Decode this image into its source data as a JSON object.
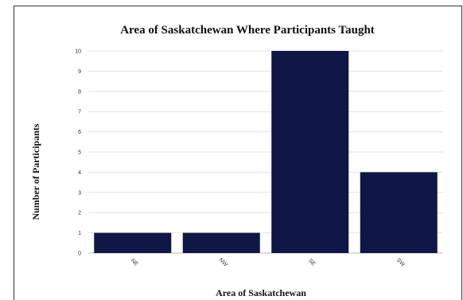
{
  "chart_data": {
    "type": "bar",
    "title": "Area of Saskatchewan Where Participants Taught",
    "xlabel": "Area of Saskatchewan",
    "ylabel": "Number of Participants",
    "categories": [
      "NE",
      "NW",
      "SE",
      "SW"
    ],
    "values": [
      1,
      1,
      10,
      4
    ],
    "ylim": [
      0,
      10
    ],
    "yticks": [
      "0",
      "1",
      "2",
      "3",
      "4",
      "5",
      "6",
      "7",
      "8",
      "9",
      "10"
    ],
    "grid": true,
    "legend": "none",
    "bar_color": "#0e1745"
  }
}
